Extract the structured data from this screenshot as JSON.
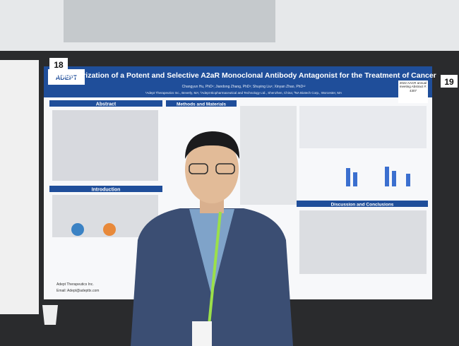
{
  "poster": {
    "number_left": "18",
    "number_right": "19",
    "logo": "ADEPT",
    "title": "Characterization of a Potent and Selective A2aR Monoclonal Antibody Antagonist for the Treatment of Cancer",
    "authors": "Changyun Hu, PhD¹; Jiandong Zhang, PhD¹; Shuying Liu¹; Xinyan Zhao, PhD¹²",
    "affiliations": "¹Adept Therapeutics Inc., Beverly, MA; ²Adept Biopharmaceutical and Technology Ltd., Shenzhen, China; ³NA Biotech Corp., Worcester, MA",
    "badge": "2022 AACR annual meeting Abstract #: 4307",
    "sections": [
      "Abstract",
      "Methods and Materials",
      "Introduction",
      "Discussion and Conclusions"
    ],
    "footer": [
      "Adept Therapeutics Inc.",
      "Email: Adept@adepttx.com"
    ]
  }
}
